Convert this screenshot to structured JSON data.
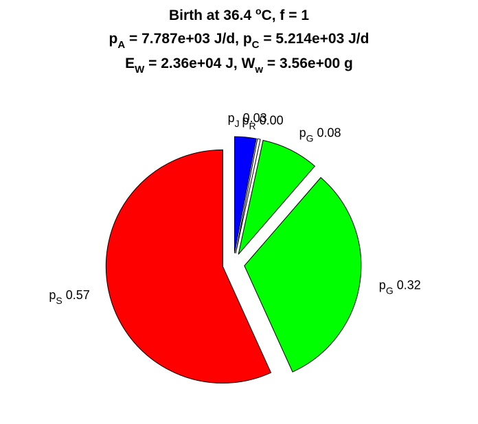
{
  "chart_data": {
    "type": "pie",
    "title_lines": [
      [
        {
          "t": "Birth at 36.4 "
        },
        {
          "t": "o",
          "sup": true
        },
        {
          "t": "C, f = 1"
        }
      ],
      [
        {
          "t": "p"
        },
        {
          "t": "A",
          "sub": true
        },
        {
          "t": " = 7.787e+03 J/d, p"
        },
        {
          "t": "C",
          "sub": true
        },
        {
          "t": " = 5.214e+03 J/d"
        }
      ],
      [
        {
          "t": "E"
        },
        {
          "t": "W",
          "sub": true
        },
        {
          "t": " = 2.36e+04 J, W"
        },
        {
          "t": "w",
          "sub": true
        },
        {
          "t": " = 3.56e+00 g"
        }
      ]
    ],
    "slices": [
      {
        "base": "p",
        "sub": "J",
        "value_label": "0.03",
        "value": 0.03,
        "color": "#0000ff"
      },
      {
        "base": "p",
        "sub": "R",
        "value_label": "0.00",
        "value": 0.004,
        "color": "#ffffff"
      },
      {
        "base": "p",
        "sub": "G",
        "value_label": "0.08",
        "value": 0.08,
        "color": "#00ff00"
      },
      {
        "base": "p",
        "sub": "G",
        "value_label": "0.32",
        "value": 0.32,
        "color": "#00ff00"
      },
      {
        "base": "p",
        "sub": "S",
        "value_label": "0.57",
        "value": 0.57,
        "color": "#ff0000"
      }
    ],
    "start": "12 o'clock",
    "direction": "clockwise",
    "exploded": true,
    "legend": "none"
  }
}
